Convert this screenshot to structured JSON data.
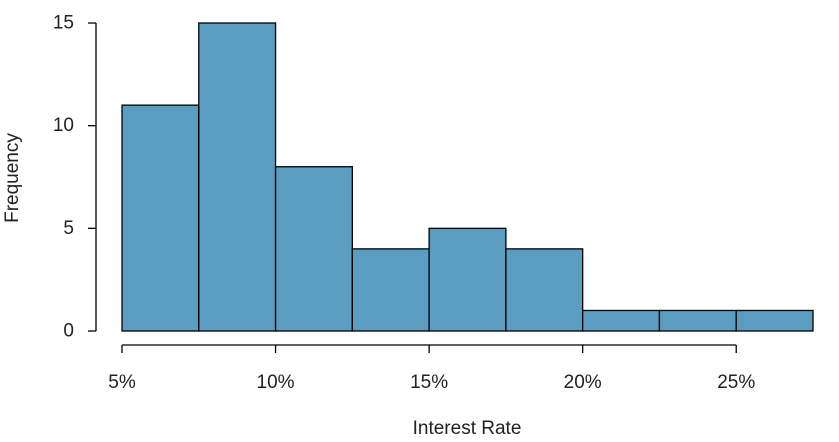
{
  "chart_data": {
    "type": "bar",
    "subtype": "histogram",
    "title": "",
    "xlabel": "Interest Rate",
    "ylabel": "Frequency",
    "bin_edges": [
      5,
      7.5,
      10,
      12.5,
      15,
      17.5,
      20,
      22.5,
      25,
      27.5
    ],
    "values": [
      11,
      15,
      8,
      4,
      5,
      4,
      1,
      1,
      1
    ],
    "xlim": [
      5,
      27.5
    ],
    "ylim": [
      0,
      15
    ],
    "x_ticks": [
      5,
      10,
      15,
      20,
      25
    ],
    "x_tick_labels": [
      "5%",
      "10%",
      "15%",
      "20%",
      "25%"
    ],
    "y_ticks": [
      0,
      5,
      10,
      15
    ],
    "y_tick_labels": [
      "0",
      "5",
      "10",
      "15"
    ],
    "bar_color": "#5b9dc0",
    "edge_color": "#000000",
    "grid": false,
    "legend": "none"
  }
}
